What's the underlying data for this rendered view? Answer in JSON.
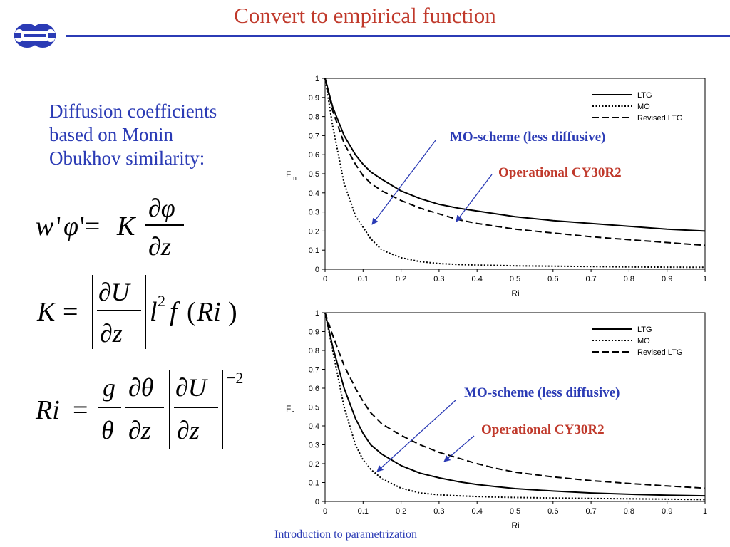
{
  "slide": {
    "title": "Convert to empirical function",
    "intro_lines": [
      "Diffusion coefficients",
      "based on Monin",
      "Obukhov similarity:"
    ],
    "footer": "Introduction to parametrization",
    "colors": {
      "title": "#c0392b",
      "accent": "#2b3bb5",
      "logo": "#2b3bb5"
    }
  },
  "chart_data": [
    {
      "type": "line",
      "ylabel": "F",
      "ylabel_sub": "m",
      "xlabel": "Ri",
      "xlim": [
        0,
        1
      ],
      "ylim": [
        0,
        1
      ],
      "x_ticks": [
        "0",
        "0.1",
        "0.2",
        "0.3",
        "0.4",
        "0.5",
        "0.6",
        "0.7",
        "0.8",
        "0.9",
        "1"
      ],
      "y_ticks": [
        "0",
        "0.1",
        "0.2",
        "0.3",
        "0.4",
        "0.5",
        "0.6",
        "0.7",
        "0.8",
        "0.9",
        "1"
      ],
      "legend_position": "top-right",
      "x": [
        0,
        0.02,
        0.05,
        0.08,
        0.1,
        0.12,
        0.15,
        0.2,
        0.25,
        0.3,
        0.35,
        0.4,
        0.45,
        0.5,
        0.6,
        0.7,
        0.8,
        0.9,
        1.0
      ],
      "series": [
        {
          "name": "LTG",
          "style": "solid",
          "values": [
            1.0,
            0.85,
            0.7,
            0.6,
            0.55,
            0.51,
            0.47,
            0.41,
            0.37,
            0.34,
            0.32,
            0.305,
            0.29,
            0.275,
            0.255,
            0.24,
            0.225,
            0.21,
            0.2
          ]
        },
        {
          "name": "MO",
          "style": "dotted",
          "values": [
            1.0,
            0.75,
            0.45,
            0.28,
            0.22,
            0.16,
            0.1,
            0.06,
            0.04,
            0.03,
            0.025,
            0.022,
            0.02,
            0.018,
            0.016,
            0.014,
            0.012,
            0.011,
            0.01
          ]
        },
        {
          "name": "Revised LTG",
          "style": "dashed",
          "values": [
            1.0,
            0.83,
            0.66,
            0.55,
            0.49,
            0.45,
            0.41,
            0.36,
            0.32,
            0.29,
            0.26,
            0.24,
            0.225,
            0.21,
            0.19,
            0.17,
            0.155,
            0.14,
            0.125
          ]
        }
      ],
      "annotations": [
        {
          "text": "MO-scheme (less diffusive)",
          "color": "#2b3bb5"
        },
        {
          "text": "Operational CY30R2",
          "color": "#c0392b"
        }
      ]
    },
    {
      "type": "line",
      "ylabel": "F",
      "ylabel_sub": "h",
      "xlabel": "Ri",
      "xlim": [
        0,
        1
      ],
      "ylim": [
        0,
        1
      ],
      "x_ticks": [
        "0",
        "0.1",
        "0.2",
        "0.3",
        "0.4",
        "0.5",
        "0.6",
        "0.7",
        "0.8",
        "0.9",
        "1"
      ],
      "y_ticks": [
        "0",
        "0.1",
        "0.2",
        "0.3",
        "0.4",
        "0.5",
        "0.6",
        "0.7",
        "0.8",
        "0.9",
        "1"
      ],
      "legend_position": "top-right",
      "x": [
        0,
        0.02,
        0.05,
        0.08,
        0.1,
        0.12,
        0.15,
        0.2,
        0.25,
        0.3,
        0.35,
        0.4,
        0.45,
        0.5,
        0.6,
        0.7,
        0.8,
        0.9,
        1.0
      ],
      "series": [
        {
          "name": "LTG",
          "style": "solid",
          "values": [
            1.0,
            0.82,
            0.6,
            0.44,
            0.36,
            0.3,
            0.25,
            0.19,
            0.15,
            0.125,
            0.105,
            0.09,
            0.078,
            0.068,
            0.055,
            0.045,
            0.038,
            0.033,
            0.03
          ]
        },
        {
          "name": "MO",
          "style": "dotted",
          "values": [
            1.0,
            0.8,
            0.5,
            0.3,
            0.22,
            0.17,
            0.12,
            0.07,
            0.045,
            0.035,
            0.03,
            0.026,
            0.023,
            0.021,
            0.018,
            0.016,
            0.014,
            0.012,
            0.01
          ]
        },
        {
          "name": "Revised LTG",
          "style": "dashed",
          "values": [
            1.0,
            0.88,
            0.72,
            0.6,
            0.53,
            0.47,
            0.41,
            0.35,
            0.3,
            0.26,
            0.23,
            0.2,
            0.175,
            0.155,
            0.13,
            0.11,
            0.095,
            0.082,
            0.07
          ]
        }
      ],
      "annotations": [
        {
          "text": "MO-scheme (less diffusive)",
          "color": "#2b3bb5"
        },
        {
          "text": "Operational CY30R2",
          "color": "#c0392b"
        }
      ]
    }
  ]
}
